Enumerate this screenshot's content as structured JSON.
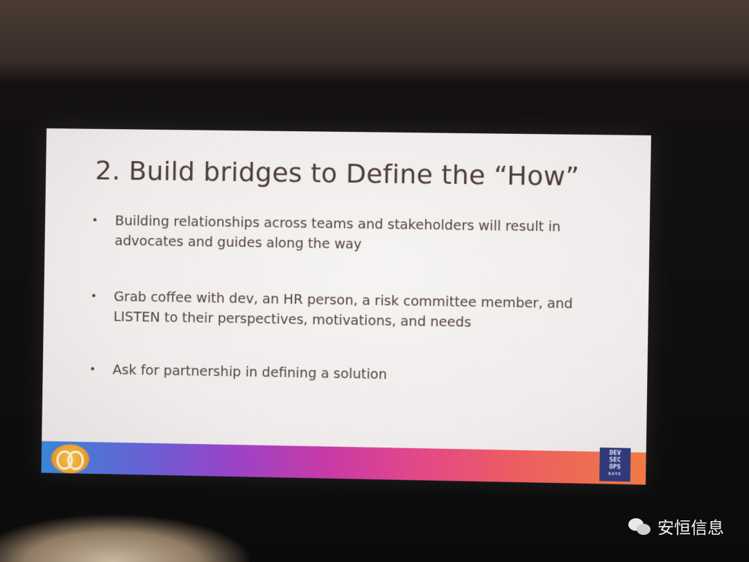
{
  "slide": {
    "title": "2. Build bridges to Define the “How”",
    "bullets": [
      "Building relationships across teams and stakeholders will result in advocates and guides along the way",
      "Grab coffee with dev, an HR person, a risk committee member, and LISTEN to their perspectives, motivations, and needs",
      "Ask for partnership in defining a solution"
    ],
    "bullet_symbol": "•",
    "logo_right_lines": [
      "DEV",
      "SEC",
      "OPS",
      "DAYS"
    ]
  },
  "watermark": {
    "icon": "wechat-icon",
    "text": "安恒信息"
  },
  "colors": {
    "slide_bg": "#f1eded",
    "text": "#54443f",
    "band_start": "#3a86d8",
    "band_end": "#f07a45"
  }
}
